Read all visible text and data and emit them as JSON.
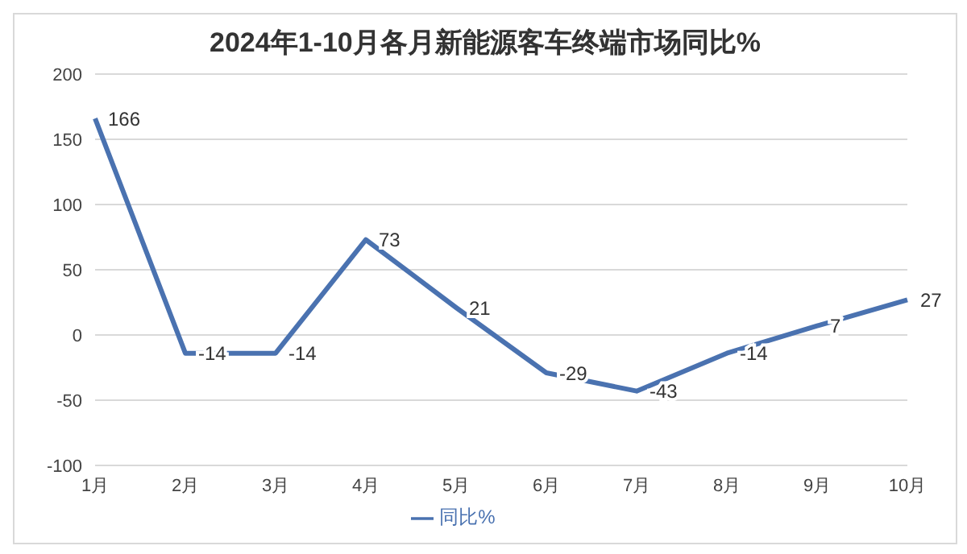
{
  "chart_data": {
    "type": "line",
    "title": "2024年1-10月各月新能源客车终端市场同比%",
    "categories": [
      "1月",
      "2月",
      "3月",
      "4月",
      "5月",
      "6月",
      "7月",
      "8月",
      "9月",
      "10月"
    ],
    "series": [
      {
        "name": "同比%",
        "color": "#4a72b0",
        "values": [
          166,
          -14,
          -14,
          73,
          21,
          -29,
          -43,
          -14,
          7,
          27
        ]
      }
    ],
    "ylim": [
      -100,
      200
    ],
    "yticks": [
      -100,
      -50,
      0,
      50,
      100,
      150,
      200
    ],
    "grid": "y",
    "legend": "bottom",
    "data_labels": true,
    "marker": "none",
    "line_style": "solid"
  }
}
